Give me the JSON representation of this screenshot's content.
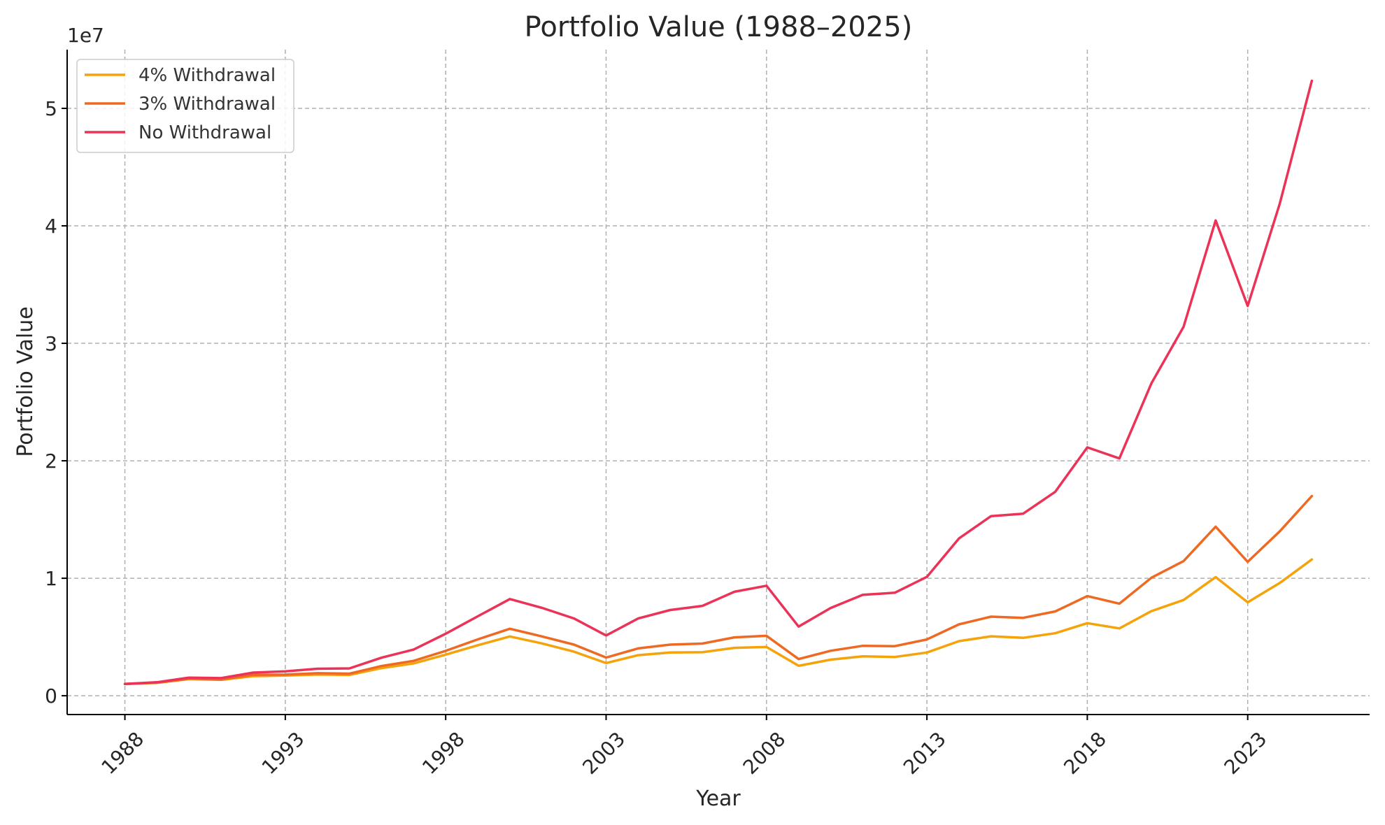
{
  "chart_data": {
    "type": "line",
    "title": "Portfolio Value (1988–2025)",
    "xlabel": "Year",
    "ylabel": "Portfolio Value",
    "y_offset_label": "1e7",
    "xlim": [
      1986.2,
      2026.8
    ],
    "ylim": [
      -1600000,
      55000000
    ],
    "x_ticks": [
      1988,
      1993,
      1998,
      2003,
      2008,
      2013,
      2018,
      2023
    ],
    "x_tick_labels": [
      "1988",
      "1993",
      "1998",
      "2003",
      "2008",
      "2013",
      "2018",
      "2023"
    ],
    "y_ticks": [
      0,
      10000000,
      20000000,
      30000000,
      40000000,
      50000000
    ],
    "y_tick_labels": [
      "0",
      "1",
      "2",
      "3",
      "4",
      "5"
    ],
    "grid": true,
    "legend_position": "top-left",
    "x": [
      1988,
      1989,
      1990,
      1991,
      1992,
      1993,
      1994,
      1995,
      1996,
      1997,
      1998,
      1999,
      2000,
      2001,
      2002,
      2003,
      2004,
      2005,
      2006,
      2007,
      2008,
      2009,
      2010,
      2011,
      2012,
      2013,
      2014,
      2015,
      2016,
      2017,
      2018,
      2019,
      2020,
      2021,
      2022,
      2023,
      2024,
      2025
    ],
    "series": [
      {
        "name": "4% Withdrawal",
        "color": "#f5a30a",
        "values": [
          1000000,
          1100000,
          1420000,
          1350000,
          1670000,
          1720000,
          1800000,
          1770000,
          2350000,
          2750000,
          3500000,
          4300000,
          5050000,
          4450000,
          3750000,
          2780000,
          3450000,
          3680000,
          3700000,
          4080000,
          4150000,
          2550000,
          3070000,
          3350000,
          3300000,
          3680000,
          4650000,
          5060000,
          4930000,
          5320000,
          6180000,
          5730000,
          7200000,
          8150000,
          10100000,
          7950000,
          9600000,
          11600000
        ]
      },
      {
        "name": "3% Withdrawal",
        "color": "#ee6a22",
        "values": [
          1000000,
          1110000,
          1450000,
          1380000,
          1780000,
          1800000,
          1920000,
          1880000,
          2530000,
          2970000,
          3820000,
          4800000,
          5700000,
          5050000,
          4350000,
          3250000,
          4030000,
          4350000,
          4440000,
          4970000,
          5100000,
          3120000,
          3830000,
          4250000,
          4220000,
          4790000,
          6080000,
          6730000,
          6630000,
          7180000,
          8480000,
          7840000,
          10050000,
          11460000,
          14390000,
          11400000,
          14000000,
          17000000
        ]
      },
      {
        "name": "No Withdrawal",
        "color": "#eb3358",
        "values": [
          1000000,
          1150000,
          1540000,
          1500000,
          1970000,
          2080000,
          2300000,
          2330000,
          3240000,
          3930000,
          5280000,
          6760000,
          8230000,
          7480000,
          6580000,
          5130000,
          6580000,
          7300000,
          7650000,
          8850000,
          9360000,
          5890000,
          7470000,
          8590000,
          8770000,
          10120000,
          13390000,
          15290000,
          15500000,
          17360000,
          21140000,
          20200000,
          26600000,
          31400000,
          40460000,
          33180000,
          41900000,
          52350000
        ]
      }
    ]
  }
}
